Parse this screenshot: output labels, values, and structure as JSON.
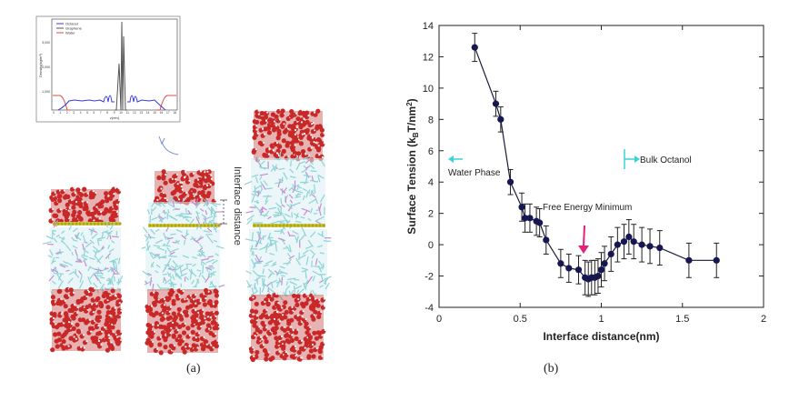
{
  "panel_a": {
    "caption": "(a)",
    "interface_label": "Interface distance",
    "inset": {
      "legend": [
        "Octanol",
        "Graphene",
        "Water"
      ],
      "legend_colors": [
        "#3a3ad8",
        "#555555",
        "#e04a4a"
      ],
      "ylabel": "Density(kg/m³)",
      "xlabel": "z(nm)",
      "yticks": [
        "3,000",
        "2,000",
        "1,000"
      ],
      "xticks": [
        "0",
        "1",
        "2",
        "3",
        "4",
        "5",
        "6",
        "7",
        "8",
        "9",
        "10",
        "11",
        "12",
        "13",
        "14",
        "15",
        "16",
        "17",
        "18"
      ]
    },
    "colors": {
      "oxygen": "#c92828",
      "bead_white": "#f3f3f3",
      "octanol": "#8fd3d6",
      "octanol_pink": "#c98ad6",
      "graphene": "#d8d23a"
    }
  },
  "panel_b": {
    "caption": "(b)",
    "water_phase_label": "Water Phase",
    "bulk_octanol_label": "Bulk Octanol",
    "free_energy_label": "Free Energy Minimum",
    "colors": {
      "line": "#1a1a3c",
      "marker": "#161650",
      "arrow_cyan": "#38d3dc",
      "arrow_pink": "#e0247a"
    }
  },
  "chart_data": {
    "type": "line",
    "title": "",
    "xlabel": "Interface distance(nm)",
    "ylabel": "Surface Tension (k_BT/nm²)",
    "ylabel_parts": [
      "Surface Tension (k",
      "B",
      "T/nm",
      "2",
      ")"
    ],
    "xlim": [
      0,
      2
    ],
    "ylim": [
      -4,
      14
    ],
    "xticks": [
      0,
      0.5,
      1,
      1.5,
      2
    ],
    "xtick_labels": [
      "0",
      "0.5",
      "1",
      "1.5",
      "2"
    ],
    "yticks": [
      -4,
      -2,
      0,
      2,
      4,
      6,
      8,
      10,
      12,
      14
    ],
    "ytick_labels": [
      "-4",
      "-2",
      "0",
      "2",
      "4",
      "6",
      "8",
      "10",
      "12",
      "14"
    ],
    "series": [
      {
        "name": "Surface Tension",
        "x": [
          0.22,
          0.35,
          0.38,
          0.44,
          0.51,
          0.53,
          0.56,
          0.6,
          0.62,
          0.66,
          0.75,
          0.8,
          0.86,
          0.9,
          0.92,
          0.94,
          0.96,
          0.98,
          1.0,
          1.02,
          1.06,
          1.1,
          1.14,
          1.17,
          1.2,
          1.25,
          1.3,
          1.36,
          1.54,
          1.71
        ],
        "y": [
          12.6,
          9.0,
          8.0,
          4.0,
          2.4,
          1.7,
          1.7,
          1.5,
          1.4,
          0.3,
          -1.2,
          -1.5,
          -1.6,
          -2.1,
          -2.2,
          -2.1,
          -2.1,
          -2.0,
          -1.6,
          -1.2,
          -0.6,
          0.0,
          0.2,
          0.5,
          0.2,
          0.0,
          -0.1,
          -0.2,
          -1.0,
          -1.0
        ],
        "yerr": [
          0.9,
          0.8,
          0.8,
          0.8,
          0.9,
          0.9,
          0.9,
          0.9,
          0.9,
          0.9,
          0.9,
          0.9,
          0.9,
          1.1,
          1.1,
          1.1,
          1.1,
          1.1,
          1.1,
          1.1,
          1.1,
          1.1,
          1.1,
          1.1,
          1.1,
          1.1,
          1.1,
          1.1,
          1.1,
          1.1
        ]
      }
    ]
  }
}
